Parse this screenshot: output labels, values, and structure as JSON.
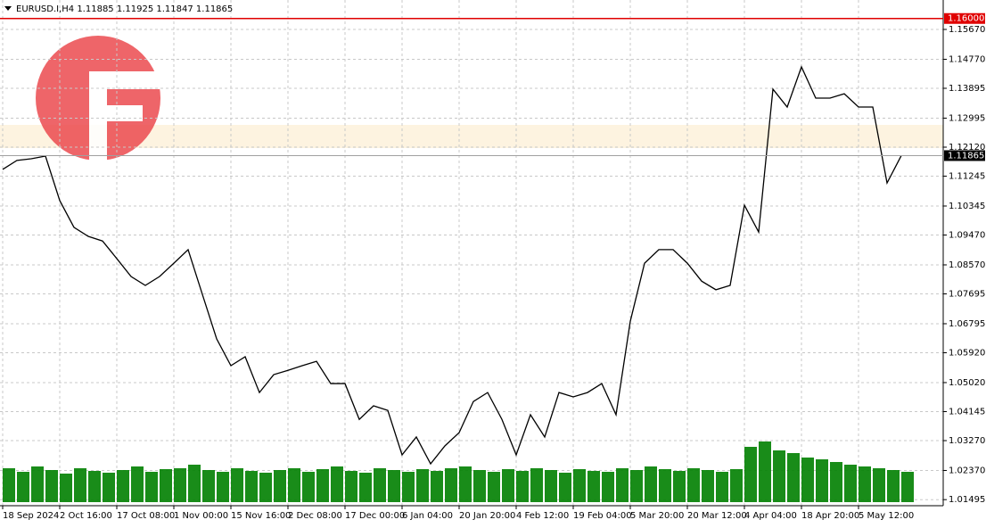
{
  "chart_data": {
    "type": "line",
    "header": "EURUSD.I,H4  1.11885 1.11925 1.11847 1.11865",
    "categories": [
      "18 Sep 2024",
      null,
      null,
      null,
      "2 Oct 16:00",
      null,
      null,
      null,
      "17 Oct 08:00",
      null,
      null,
      null,
      "1 Nov 00:00",
      null,
      null,
      null,
      "15 Nov 16:00",
      null,
      null,
      null,
      "2 Dec 08:00",
      null,
      null,
      null,
      "17 Dec 00:00",
      null,
      null,
      null,
      "6 Jan 04:00",
      null,
      null,
      null,
      "20 Jan 20:00",
      null,
      null,
      null,
      "4 Feb 12:00",
      null,
      null,
      null,
      "19 Feb 04:00",
      null,
      null,
      null,
      "5 Mar 20:00",
      null,
      null,
      null,
      "20 Mar 12:00",
      null,
      null,
      null,
      "4 Apr 04:00",
      null,
      null,
      null,
      "18 Apr 20:00",
      null,
      null,
      null,
      "5 May 12:00",
      null,
      null,
      null
    ],
    "series": [
      {
        "color": "#000000",
        "values": [
          1.1145,
          1.1172,
          1.1177,
          1.1185,
          1.1051,
          1.097,
          1.0943,
          1.0929,
          1.0876,
          1.0822,
          1.0795,
          1.0822,
          1.0862,
          1.0903,
          1.0768,
          1.0634,
          1.0553,
          1.058,
          1.0472,
          1.0526,
          1.0539,
          1.0553,
          1.0566,
          1.0499,
          1.0499,
          1.0391,
          1.0432,
          1.0418,
          1.0284,
          1.0338,
          1.0257,
          1.0311,
          1.0351,
          1.0445,
          1.0472,
          1.0391,
          1.0284,
          1.0405,
          1.0338,
          1.0472,
          1.0459,
          1.0472,
          1.0499,
          1.0405,
          1.0687,
          1.0862,
          1.0903,
          1.0903,
          1.0862,
          1.0808,
          1.0782,
          1.0795,
          1.1037,
          1.0956,
          1.1387,
          1.1333,
          1.1454,
          1.136,
          1.136,
          1.1373,
          1.1333,
          1.1333,
          1.1104,
          1.11865
        ]
      }
    ],
    "volume": {
      "color": "#008000",
      "values": [
        38,
        34,
        40,
        36,
        32,
        38,
        35,
        33,
        36,
        40,
        34,
        37,
        38,
        42,
        36,
        34,
        38,
        35,
        33,
        36,
        38,
        34,
        37,
        40,
        35,
        33,
        38,
        36,
        34,
        37,
        35,
        38,
        40,
        36,
        34,
        37,
        35,
        38,
        36,
        33,
        37,
        35,
        34,
        38,
        36,
        40,
        37,
        35,
        38,
        36,
        34,
        37,
        62,
        68,
        58,
        55,
        50,
        48,
        45,
        42,
        40,
        38,
        36,
        34
      ]
    },
    "ylim": [
      1.01307,
      1.16289
    ],
    "yticks": [
      {
        "value": 1.0149,
        "label": "1.01495"
      },
      {
        "value": 1.0237,
        "label": "1.02370"
      },
      {
        "value": 1.0327,
        "label": "1.03270"
      },
      {
        "value": 1.04145,
        "label": "1.04145"
      },
      {
        "value": 1.0502,
        "label": "1.05020"
      },
      {
        "value": 1.0592,
        "label": "1.05920"
      },
      {
        "value": 1.06795,
        "label": "1.06795"
      },
      {
        "value": 1.07695,
        "label": "1.07695"
      },
      {
        "value": 1.0857,
        "label": "1.08570"
      },
      {
        "value": 1.0947,
        "label": "1.09470"
      },
      {
        "value": 1.10345,
        "label": "1.10345"
      },
      {
        "value": 1.11245,
        "label": "1.11245"
      },
      {
        "value": 1.1212,
        "label": "1.12120"
      },
      {
        "value": 1.12995,
        "label": "1.12995"
      },
      {
        "value": 1.13895,
        "label": "1.13895"
      },
      {
        "value": 1.1477,
        "label": "1.14770"
      },
      {
        "value": 1.1567,
        "label": "1.15670"
      }
    ],
    "level": {
      "value": 1.16,
      "label": "1.16000",
      "color": "#e00000"
    },
    "last": {
      "value": 1.11865,
      "label": "1.11865"
    },
    "grid": true
  }
}
